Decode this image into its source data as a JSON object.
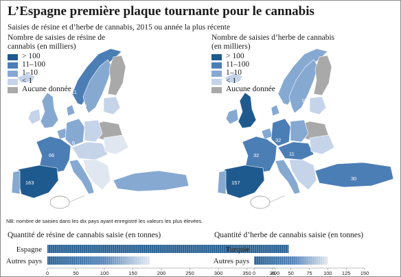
{
  "header": {
    "title": "L’Espagne première plaque tournante pour le cannabis",
    "subtitle": "Saisies de résine et d’herbe de cannabis, 2015 ou année la plus récente"
  },
  "maps": [
    {
      "title_line1": "Nombre de saisies de résine de",
      "title_line2": "cannabis (en milliers)",
      "legend": [
        "> 100",
        "11–100",
        "1–10",
        "< 1",
        "Aucune donnée"
      ],
      "labels": [
        "11",
        "9",
        "6",
        "6",
        "66",
        "163"
      ]
    },
    {
      "title_line1": "Nombre de saisies d’herbe de cannabis",
      "title_line2": "(en milliers)",
      "legend": [
        "> 100",
        "11–100",
        "1–10",
        "< 1",
        "Aucune donnée"
      ],
      "labels": [
        "10",
        "101",
        "32",
        "11",
        "32",
        "157",
        "30"
      ]
    }
  ],
  "colors": {
    "gt100": "#1f5a8f",
    "c11_100": "#4c7eb6",
    "c1_10": "#86a9d2",
    "lt1": "#c6d4ea",
    "nodata": "#a9a9a9",
    "gradient_end": "#e0e7f1"
  },
  "note": "NB: nombre de saisies dans les dix pays ayant enregistré les valeurs les plus élevées.",
  "chart_data": [
    {
      "type": "bar",
      "title": "Quantité de résine de cannabis saisie (en tonnes)",
      "categories": [
        "Espagne",
        "Autres pays"
      ],
      "values": [
        380,
        180
      ],
      "ticks": [
        "0",
        "50",
        "100",
        "150",
        "200",
        "250",
        "300",
        "350",
        "400"
      ],
      "xlim": [
        0,
        400
      ],
      "orientation": "horizontal"
    },
    {
      "type": "bar",
      "title": "Quantité d’herbe de cannabis saisie (en tonnes)",
      "categories": [
        "Turquie",
        "Autres pays"
      ],
      "values": [
        47,
        100
      ],
      "ticks": [
        "0",
        "25",
        "50",
        "75",
        "100",
        "125",
        "150"
      ],
      "xlim": [
        0,
        150
      ],
      "orientation": "horizontal"
    }
  ]
}
